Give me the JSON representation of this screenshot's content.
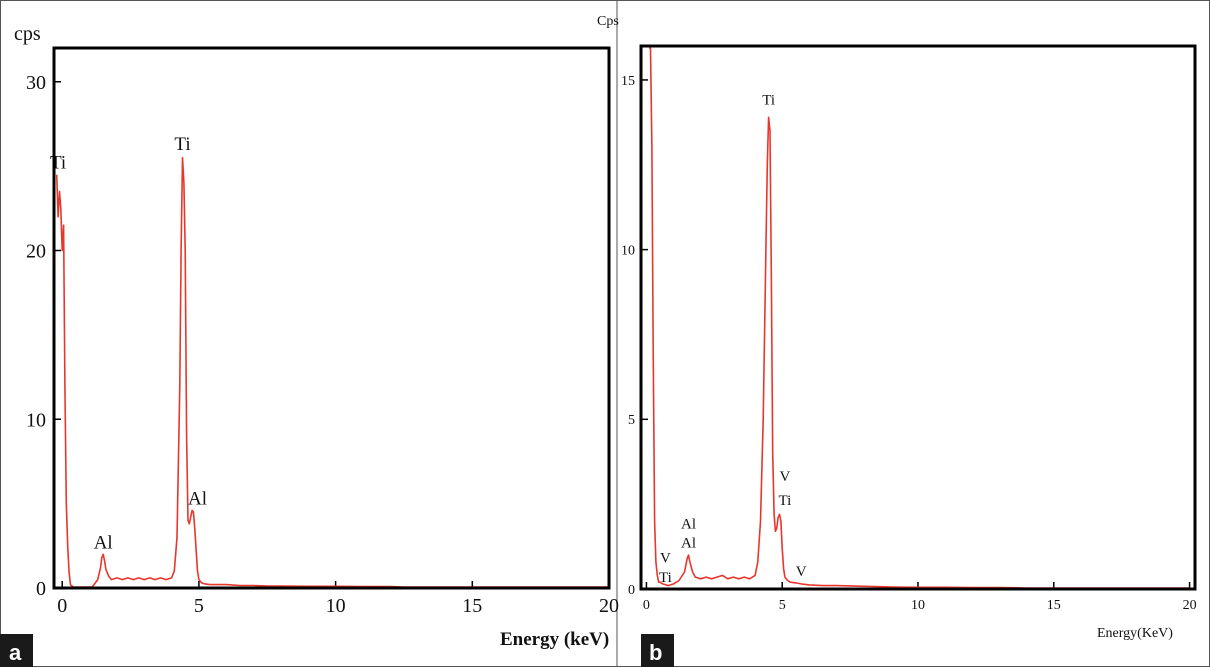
{
  "figure": {
    "panel_labels": [
      "a",
      "b"
    ]
  },
  "colors": {
    "spectrum": "#e8362d",
    "frame": "#000000",
    "text": "#111111",
    "badge_bg": "#1a1a1a",
    "badge_text": "#ffffff"
  },
  "chart_data": [
    {
      "type": "line",
      "panel": "a",
      "title": "",
      "ylabel": "cps",
      "xlabel": "Energy (keV)",
      "xlim": [
        -0.3,
        20
      ],
      "ylim": [
        0,
        32
      ],
      "xticks": [
        0,
        5,
        10,
        15,
        20
      ],
      "yticks": [
        0,
        10,
        20,
        30
      ],
      "grid": false,
      "legend": "none",
      "series": [
        {
          "x": [
            -0.2,
            -0.15,
            -0.1,
            -0.05,
            0,
            0.05,
            0.1,
            0.15,
            0.2,
            0.25,
            0.3,
            0.4,
            0.5,
            0.7,
            0.9,
            1.1,
            1.3,
            1.4,
            1.45,
            1.5,
            1.55,
            1.6,
            1.7,
            1.8,
            2.0,
            2.2,
            2.4,
            2.6,
            2.8,
            3.0,
            3.2,
            3.4,
            3.6,
            3.8,
            4.0,
            4.1,
            4.2,
            4.3,
            4.35,
            4.4,
            4.45,
            4.5,
            4.55,
            4.6,
            4.65,
            4.7,
            4.75,
            4.8,
            4.85,
            4.9,
            4.95,
            5.0,
            5.1,
            5.2,
            5.4,
            5.6,
            6.0,
            6.5,
            7.0,
            7.5,
            8.0,
            9.0,
            10.0,
            11.0,
            12.0,
            12.5,
            13.0,
            14.0,
            15.0,
            16.0,
            17.0,
            18.0,
            19.0,
            20.0
          ],
          "y": [
            24.5,
            22.0,
            23.5,
            22.5,
            20.0,
            21.5,
            12.0,
            5.0,
            2.5,
            1.0,
            0.2,
            0.0,
            0.0,
            0.0,
            0.0,
            0.05,
            0.5,
            1.2,
            1.8,
            2.0,
            1.6,
            1.1,
            0.7,
            0.5,
            0.6,
            0.5,
            0.6,
            0.5,
            0.6,
            0.5,
            0.6,
            0.5,
            0.6,
            0.5,
            0.6,
            1.0,
            3.0,
            12.0,
            20.0,
            25.5,
            24.0,
            20.0,
            9.0,
            4.0,
            3.8,
            4.2,
            4.6,
            4.5,
            3.5,
            2.2,
            1.0,
            0.5,
            0.3,
            0.25,
            0.2,
            0.2,
            0.2,
            0.15,
            0.15,
            0.12,
            0.12,
            0.1,
            0.1,
            0.08,
            0.08,
            0.0,
            0.0,
            0.0,
            0.0,
            0.0,
            0.0,
            0.0,
            0.0,
            0.0
          ]
        }
      ],
      "annotations": [
        {
          "text": "Ti",
          "x": -0.15,
          "y": 24.5
        },
        {
          "text": "Ti",
          "x": 4.4,
          "y": 25.6
        },
        {
          "text": "Al",
          "x": 1.5,
          "y": 2.0
        },
        {
          "text": "Al",
          "x": 4.95,
          "y": 4.6
        }
      ]
    },
    {
      "type": "line",
      "panel": "b",
      "title": "",
      "ylabel": "Cps",
      "xlabel": "Energy(KeV)",
      "xlim": [
        -0.2,
        20.2
      ],
      "ylim": [
        0,
        16
      ],
      "xticks": [
        0,
        5,
        10,
        15,
        20
      ],
      "yticks": [
        0,
        5,
        10,
        15
      ],
      "grid": false,
      "legend": "none",
      "series": [
        {
          "x": [
            0.1,
            0.15,
            0.2,
            0.25,
            0.3,
            0.35,
            0.4,
            0.45,
            0.5,
            0.6,
            0.8,
            1.0,
            1.2,
            1.4,
            1.5,
            1.55,
            1.6,
            1.7,
            1.8,
            2.0,
            2.2,
            2.4,
            2.6,
            2.8,
            3.0,
            3.2,
            3.4,
            3.6,
            3.8,
            4.0,
            4.1,
            4.2,
            4.3,
            4.4,
            4.45,
            4.5,
            4.55,
            4.6,
            4.65,
            4.7,
            4.75,
            4.8,
            4.85,
            4.9,
            4.95,
            5.0,
            5.05,
            5.1,
            5.2,
            5.3,
            5.5,
            5.7,
            6.0,
            6.5,
            7.0,
            8.0,
            9.0,
            10.0,
            11.0,
            12.0,
            13.0,
            14.0,
            15.0,
            16.0,
            17.0,
            18.0,
            19.0,
            20.0
          ],
          "y": [
            16.0,
            16.0,
            13.0,
            7.0,
            2.0,
            0.8,
            0.4,
            0.2,
            0.2,
            0.15,
            0.1,
            0.15,
            0.25,
            0.5,
            0.9,
            1.0,
            0.8,
            0.5,
            0.35,
            0.3,
            0.35,
            0.3,
            0.35,
            0.4,
            0.3,
            0.35,
            0.3,
            0.35,
            0.3,
            0.4,
            0.8,
            2.0,
            5.0,
            10.0,
            12.5,
            13.9,
            13.5,
            9.0,
            4.0,
            2.2,
            1.7,
            1.8,
            2.1,
            2.2,
            2.0,
            1.2,
            0.6,
            0.35,
            0.25,
            0.2,
            0.18,
            0.15,
            0.12,
            0.1,
            0.1,
            0.08,
            0.06,
            0.05,
            0.05,
            0.04,
            0.04,
            0.03,
            0.03,
            0.02,
            0.02,
            0.0,
            0.0,
            0.0
          ]
        }
      ],
      "annotations": [
        {
          "text": "V",
          "x": 0.7,
          "y": 0.6
        },
        {
          "text": "Ti",
          "x": 0.7,
          "y": 0.0
        },
        {
          "text": "Al",
          "x": 1.55,
          "y": 1.6
        },
        {
          "text": "Al",
          "x": 1.55,
          "y": 1.05
        },
        {
          "text": "Ti",
          "x": 4.5,
          "y": 14.1
        },
        {
          "text": "V",
          "x": 5.1,
          "y": 3.0
        },
        {
          "text": "Ti",
          "x": 5.1,
          "y": 2.3
        },
        {
          "text": "V",
          "x": 5.7,
          "y": 0.2
        }
      ]
    }
  ]
}
